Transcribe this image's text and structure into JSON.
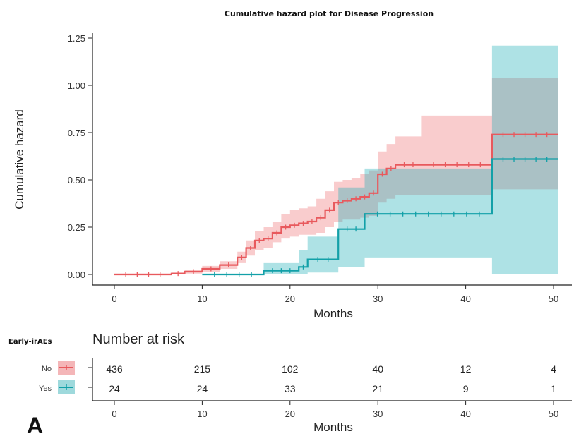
{
  "chart_data": {
    "type": "line",
    "title": "Cumulative hazard plot for Disease Progression",
    "xlabel": "Months",
    "ylabel": "Cumulative hazard",
    "xlim": [
      -2,
      52.5
    ],
    "ylim": [
      -0.05,
      1.27
    ],
    "x_ticks": [
      "0",
      "10",
      "20",
      "30",
      "40",
      "50"
    ],
    "y_ticks": [
      "0.00",
      "0.25",
      "0.50",
      "0.75",
      "1.00",
      "1.25"
    ],
    "legend_title": "Early-irAEs",
    "colors": {
      "No": "#E8595D",
      "Yes": "#12A0A8"
    },
    "series": [
      {
        "name": "No",
        "color": "#E8595D",
        "x": [
          0,
          6.5,
          8,
          10,
          12,
          14,
          15,
          16,
          17,
          18,
          19,
          20,
          21,
          22,
          23,
          24,
          25,
          26,
          27,
          28,
          29,
          30,
          31,
          32,
          35,
          43,
          50.5
        ],
        "y": [
          0,
          0.005,
          0.015,
          0.03,
          0.05,
          0.09,
          0.14,
          0.18,
          0.19,
          0.22,
          0.25,
          0.26,
          0.27,
          0.28,
          0.3,
          0.34,
          0.38,
          0.39,
          0.4,
          0.41,
          0.43,
          0.53,
          0.56,
          0.58,
          0.58,
          0.74,
          0.74
        ],
        "lower": [
          0,
          0,
          0.005,
          0.015,
          0.03,
          0.06,
          0.1,
          0.13,
          0.14,
          0.17,
          0.19,
          0.2,
          0.21,
          0.21,
          0.22,
          0.25,
          0.28,
          0.29,
          0.29,
          0.3,
          0.31,
          0.38,
          0.4,
          0.42,
          0.42,
          0.45,
          0.45
        ],
        "upper": [
          0.005,
          0.01,
          0.025,
          0.045,
          0.07,
          0.12,
          0.18,
          0.23,
          0.25,
          0.28,
          0.32,
          0.34,
          0.35,
          0.36,
          0.4,
          0.44,
          0.49,
          0.5,
          0.51,
          0.53,
          0.55,
          0.65,
          0.69,
          0.73,
          0.84,
          1.04,
          1.04
        ]
      },
      {
        "name": "Yes",
        "color": "#12A0A8",
        "x": [
          10,
          17,
          21,
          22,
          25.5,
          28.5,
          43,
          50.5
        ],
        "y": [
          0,
          0.02,
          0.04,
          0.08,
          0.24,
          0.32,
          0.61,
          0.61
        ],
        "lower": [
          0,
          0,
          0,
          0.01,
          0.04,
          0.09,
          0,
          0
        ],
        "upper": [
          0,
          0.06,
          0.13,
          0.2,
          0.46,
          0.56,
          1.21,
          1.21
        ]
      }
    ]
  },
  "risk_table": {
    "title": "Number at risk",
    "xlabel": "Months",
    "x_ticks": [
      "0",
      "10",
      "20",
      "30",
      "40",
      "50"
    ],
    "rows": [
      {
        "label": "No",
        "color": "#E8595D",
        "values": [
          "436",
          "215",
          "102",
          "40",
          "12",
          "4"
        ]
      },
      {
        "label": "Yes",
        "color": "#12A0A8",
        "values": [
          "24",
          "24",
          "33",
          "21",
          "9",
          "1"
        ]
      }
    ]
  },
  "panel_label": "A"
}
